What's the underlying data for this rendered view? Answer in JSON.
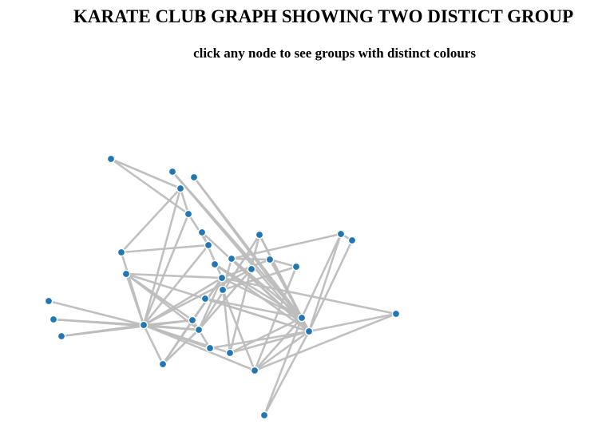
{
  "header": {
    "title": "KARATE CLUB GRAPH SHOWING TWO DISTICT GROUP",
    "subtitle": "click any node to see groups with distinct colours"
  },
  "graph": {
    "node_color": "#1f77b4",
    "node_stroke": "#ffffff",
    "link_color": "#bdbdbd",
    "node_count": 34,
    "edge_count": 78
  }
}
